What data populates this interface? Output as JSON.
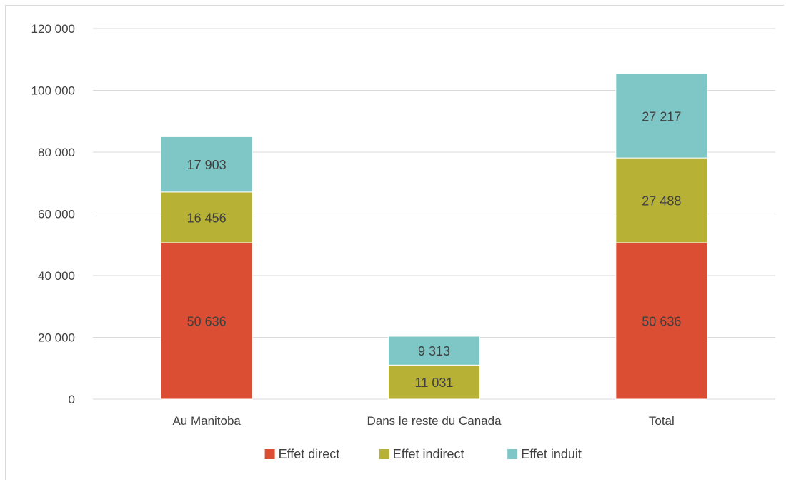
{
  "chart_data": {
    "type": "bar",
    "stacked": true,
    "title": "",
    "xlabel": "",
    "ylabel": "",
    "categories": [
      "Au Manitoba",
      "Dans le reste du Canada",
      "Total"
    ],
    "series": [
      {
        "name": "Effet direct",
        "color": "#dc4e33",
        "values": [
          50636,
          0,
          50636
        ],
        "labels": [
          "50 636",
          "",
          "50 636"
        ]
      },
      {
        "name": "Effet indirect",
        "color": "#b7b236",
        "values": [
          16456,
          11031,
          27488
        ],
        "labels": [
          "16 456",
          "11 031",
          "27 488"
        ]
      },
      {
        "name": "Effet induit",
        "color": "#7fc6c6",
        "values": [
          17903,
          9313,
          27217
        ],
        "labels": [
          "17 903",
          "9 313",
          "27 217"
        ]
      }
    ],
    "ylim": [
      0,
      120000
    ],
    "yticks": [
      0,
      20000,
      40000,
      60000,
      80000,
      100000,
      120000
    ],
    "ytick_labels": [
      "0",
      "20 000",
      "40 000",
      "60 000",
      "80 000",
      "100 000",
      "120 000"
    ],
    "grid": true,
    "legend_position": "bottom"
  }
}
